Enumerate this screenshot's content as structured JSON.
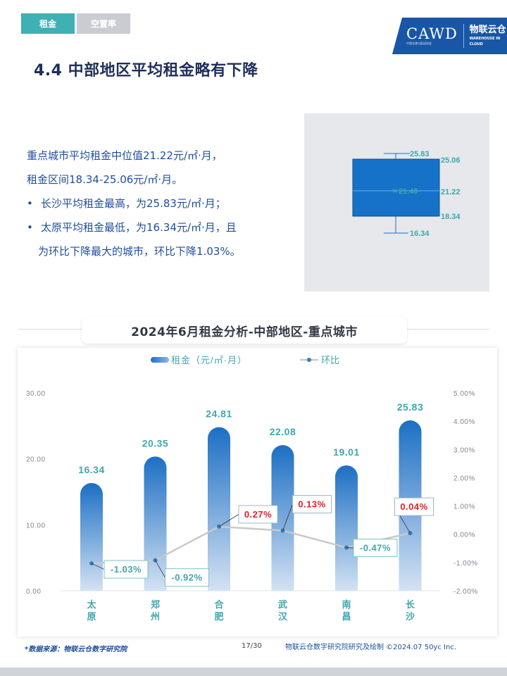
{
  "tabs": [
    {
      "label": "租金",
      "active": true
    },
    {
      "label": "空置率",
      "active": false
    }
  ],
  "logo": {
    "brand_en": "CAWD",
    "brand_sub": "中国仓储与配送协会",
    "brand_cn": "物联云仓",
    "brand_cn_en": "WAREHOUSE IN CLOUD"
  },
  "title": "4.4 中部地区平均租金略有下降",
  "summary": {
    "line1": "重点城市平均租金中位值21.22元/㎡·月，",
    "line2": "租金区间18.34-25.06元/㎡·月。",
    "bullet1": "长沙平均租金最高，为25.83元/㎡·月；",
    "bullet2a": "太原平均租金最低，为16.34元/㎡·月，且",
    "bullet2b": "为环比下降最大的城市，环比下降1.03%。",
    "bullet_mark": "•"
  },
  "boxplot": {
    "max": "25.83",
    "q3": "25.06",
    "mean": "21.40",
    "mean_marker": "✕",
    "median": "21.22",
    "q1": "18.34",
    "min": "16.34",
    "color": "#1572c8"
  },
  "chart_title": "2024年6月租金分析-中部地区-重点城市",
  "chart_data": {
    "type": "bar",
    "categories": [
      "太原",
      "郑州",
      "合肥",
      "武汉",
      "南昌",
      "长沙"
    ],
    "series": [
      {
        "name": "租金（元/㎡·月）",
        "type": "bar",
        "axis": "left",
        "values": [
          16.34,
          20.35,
          24.81,
          22.08,
          19.01,
          25.83
        ],
        "labels": [
          "16.34",
          "20.35",
          "24.81",
          "22.08",
          "19.01",
          "25.83"
        ]
      },
      {
        "name": "环比",
        "type": "line",
        "axis": "right",
        "values": [
          -1.03,
          -0.92,
          0.27,
          0.13,
          -0.47,
          0.04
        ],
        "labels": [
          "-1.03%",
          "-0.92%",
          "0.27%",
          "0.13%",
          "-0.47%",
          "0.04%"
        ]
      }
    ],
    "left_axis": {
      "ylim": [
        0,
        30
      ],
      "ticks": [
        "0.00",
        "10.00",
        "20.00",
        "30.00"
      ]
    },
    "right_axis": {
      "ylim": [
        -2,
        5
      ],
      "ticks": [
        "-2.00%",
        "-1.00%",
        "0.00%",
        "1.00%",
        "2.00%",
        "3.00%",
        "4.00%",
        "5.00%"
      ]
    },
    "legend_position": "top",
    "colors": {
      "bar_top": "#1c6fc4",
      "bar_bottom": "#d4e2f3",
      "line": "#c9c9c9",
      "marker": "#2f7fb8",
      "positive_label": "#e0202a",
      "negative_label": "#3fa7ad",
      "axis_label": "#3fa7ad"
    }
  },
  "footer": {
    "source": "*数据来源：物联云仓数字研究院",
    "page": "17/30",
    "credit": "物联云仓数字研究院研究及绘制   ©2024.07 50yc Inc."
  }
}
